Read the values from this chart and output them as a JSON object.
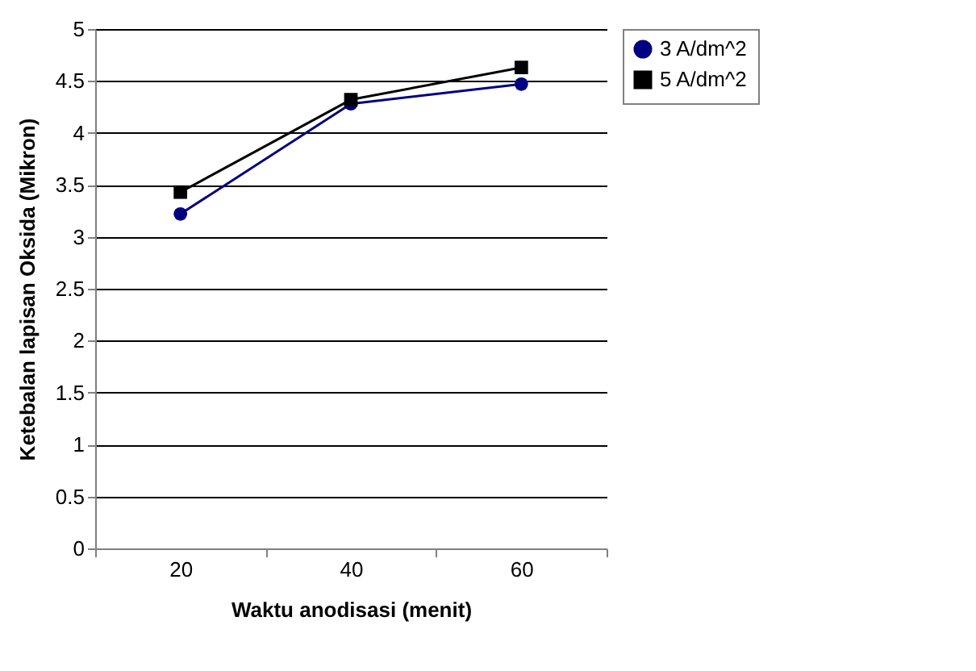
{
  "chart_data": {
    "type": "line",
    "xlabel": "Waktu anodisasi (menit)",
    "ylabel": "Ketebalan lapisan Oksida (Mikron)",
    "categories": [
      "20",
      "40",
      "60"
    ],
    "series": [
      {
        "name": "3 A/dm^2",
        "color": "#000080",
        "marker": "circle",
        "values": [
          3.22,
          4.28,
          4.47
        ]
      },
      {
        "name": "5 A/dm^2",
        "color": "#000000",
        "marker": "square",
        "values": [
          3.43,
          4.32,
          4.63
        ]
      }
    ],
    "ylim": [
      0,
      5
    ],
    "yticks": [
      0,
      0.5,
      1,
      1.5,
      2,
      2.5,
      3,
      3.5,
      4,
      4.5,
      5
    ],
    "grid": "y",
    "legend": "right"
  }
}
